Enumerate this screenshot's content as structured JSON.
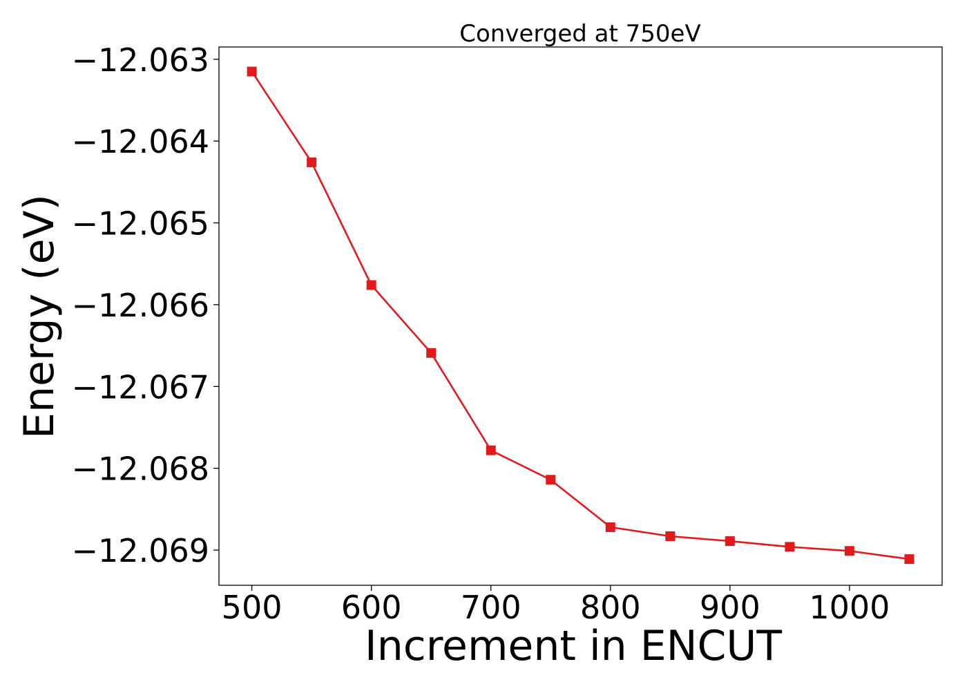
{
  "chart_data": {
    "type": "line",
    "title": "Converged at 750eV",
    "xlabel": "Increment in ENCUT",
    "ylabel": "Energy (eV)",
    "xlim": [
      472.5,
      1077.5
    ],
    "ylim": [
      -12.06943,
      -12.06285
    ],
    "xticks": [
      500,
      600,
      700,
      800,
      900,
      1000
    ],
    "xtick_labels": [
      "500",
      "600",
      "700",
      "800",
      "900",
      "1000"
    ],
    "yticks": [
      -12.063,
      -12.064,
      -12.065,
      -12.066,
      -12.067,
      -12.068,
      -12.069
    ],
    "ytick_labels": [
      "−12.063",
      "−12.064",
      "−12.065",
      "−12.066",
      "−12.067",
      "−12.068",
      "−12.069"
    ],
    "grid": false,
    "series": [
      {
        "color": "#e31a1c",
        "marker": "square",
        "x": [
          500,
          550,
          600,
          650,
          700,
          750,
          800,
          850,
          900,
          950,
          1000,
          1050
        ],
        "y": [
          -12.06315,
          -12.06426,
          -12.06576,
          -12.06659,
          -12.06778,
          -12.06814,
          -12.06872,
          -12.06883,
          -12.06889,
          -12.06896,
          -12.06901,
          -12.06911
        ]
      }
    ]
  }
}
